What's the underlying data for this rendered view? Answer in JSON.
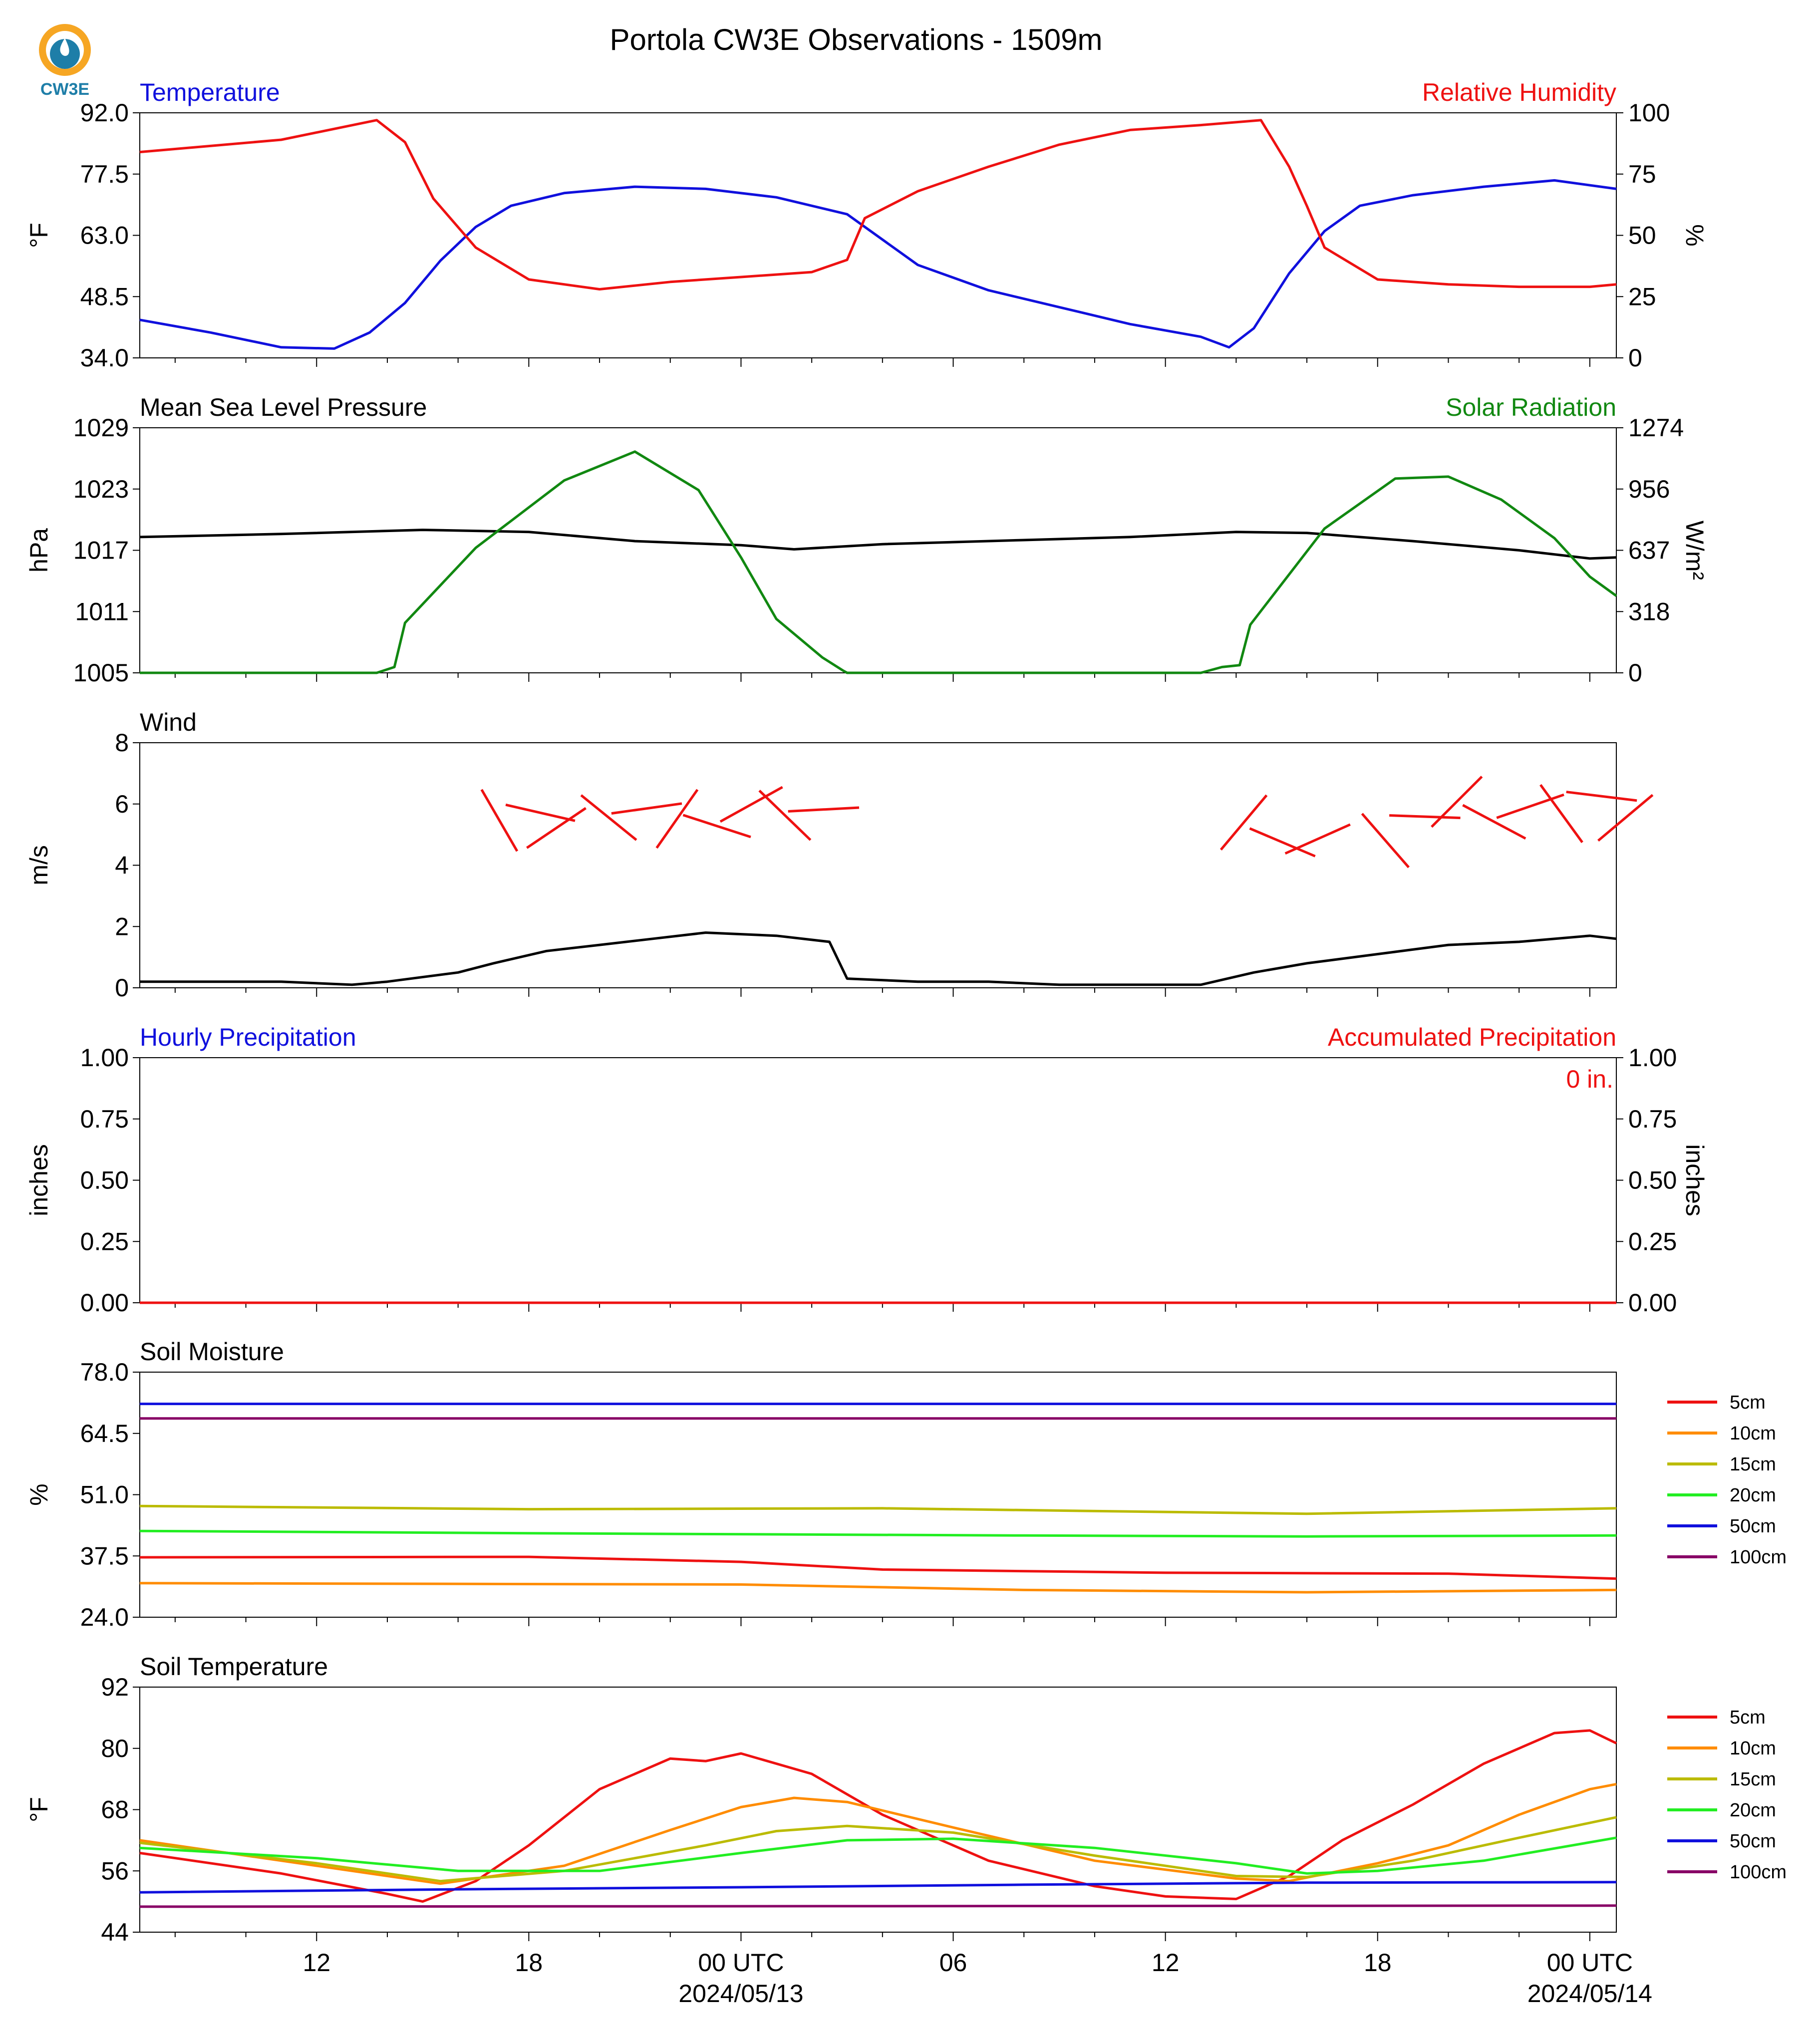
{
  "title": "Portola CW3E Observations - 1509m",
  "logo_text": "CW3E",
  "colors": {
    "blue": "#1010dd",
    "red": "#ee1111",
    "green": "#118811",
    "black": "#000000",
    "orange": "#ff8c00",
    "olive": "#bbbb00",
    "lime": "#22ee22",
    "purple": "#880066"
  },
  "x_axis": {
    "range_hours": [
      -17,
      24.75
    ],
    "tick_labels": [
      {
        "hour": -12,
        "label": "12"
      },
      {
        "hour": -6,
        "label": "18"
      },
      {
        "hour": 0,
        "label": "00 UTC",
        "date": "2024/05/13"
      },
      {
        "hour": 6,
        "label": "06"
      },
      {
        "hour": 12,
        "label": "12"
      },
      {
        "hour": 18,
        "label": "18"
      },
      {
        "hour": 24,
        "label": "00 UTC",
        "date": "2024/05/14"
      }
    ]
  },
  "panels": {
    "temp_rh": {
      "left_title": "Temperature",
      "right_title": "Relative Humidity",
      "left_ylabel": "°F",
      "right_ylabel": "%",
      "left_ticks": [
        "92.0",
        "77.5",
        "63.0",
        "48.5",
        "34.0"
      ],
      "right_ticks": [
        "100",
        "75",
        "50",
        "25",
        "0"
      ]
    },
    "pressure_solar": {
      "left_title": "Mean Sea Level Pressure",
      "right_title": "Solar Radiation",
      "left_ylabel": "hPa",
      "right_ylabel": "W/m²",
      "left_ticks": [
        "1029",
        "1023",
        "1017",
        "1011",
        "1005"
      ],
      "right_ticks": [
        "1274",
        "956",
        "637",
        "318",
        "0"
      ]
    },
    "wind": {
      "left_title": "Wind",
      "left_ylabel": "m/s",
      "left_ticks": [
        "8",
        "6",
        "4",
        "2",
        "0"
      ]
    },
    "precip": {
      "left_title": "Hourly Precipitation",
      "right_title": "Accumulated Precipitation",
      "left_ylabel": "inches",
      "right_ylabel": "inches",
      "left_ticks": [
        "1.00",
        "0.75",
        "0.50",
        "0.25",
        "0.00"
      ],
      "right_ticks": [
        "1.00",
        "0.75",
        "0.50",
        "0.25",
        "0.00"
      ],
      "annotation": "0 in."
    },
    "soil_moisture": {
      "left_title": "Soil Moisture",
      "left_ylabel": "%",
      "left_ticks": [
        "78.0",
        "64.5",
        "51.0",
        "37.5",
        "24.0"
      ],
      "legend": [
        "5cm",
        "10cm",
        "15cm",
        "20cm",
        "50cm",
        "100cm"
      ]
    },
    "soil_temp": {
      "left_title": "Soil Temperature",
      "left_ylabel": "°F",
      "left_ticks": [
        "92",
        "80",
        "68",
        "56",
        "44"
      ],
      "legend": [
        "5cm",
        "10cm",
        "15cm",
        "20cm",
        "50cm",
        "100cm"
      ]
    }
  },
  "chart_data": [
    {
      "type": "line",
      "title": "Temperature / Relative Humidity",
      "ylim": [
        34,
        92
      ],
      "y2lim": [
        0,
        100
      ],
      "series": [
        {
          "name": "Temperature",
          "axis": "left",
          "x": [
            -17,
            -15,
            -13,
            -11.5,
            -10.5,
            -9.5,
            -8.5,
            -7.5,
            -6.5,
            -5,
            -3,
            -1,
            1,
            3,
            5,
            7,
            9,
            11,
            13,
            13.8,
            14.5,
            15.5,
            16.5,
            17.5,
            19,
            21,
            23,
            24.75
          ],
          "y": [
            43,
            40,
            36.5,
            36.2,
            40,
            47,
            57,
            65,
            70,
            73,
            74.5,
            74,
            72,
            68,
            56,
            50,
            46,
            42,
            39,
            36.5,
            41,
            54,
            64,
            70,
            72.5,
            74.5,
            76,
            74
          ]
        },
        {
          "name": "Relative Humidity",
          "axis": "right",
          "x": [
            -17,
            -13,
            -10.3,
            -9.5,
            -8.7,
            -7.5,
            -6,
            -4,
            -2,
            0,
            2,
            3,
            3.5,
            5,
            7,
            9,
            11,
            13,
            14.7,
            15.5,
            16,
            16.5,
            18,
            20,
            22,
            24,
            24.75
          ],
          "y": [
            84,
            89,
            97,
            88,
            65,
            45,
            32,
            28,
            31,
            33,
            35,
            40,
            57,
            68,
            78,
            87,
            93,
            95,
            97,
            78,
            62,
            45,
            32,
            30,
            29,
            29,
            30
          ]
        }
      ]
    },
    {
      "type": "line",
      "title": "Mean Sea Level Pressure / Solar Radiation",
      "ylim": [
        1005,
        1029
      ],
      "y2lim": [
        0,
        1274
      ],
      "series": [
        {
          "name": "Mean Sea Level Pressure",
          "axis": "left",
          "x": [
            -17,
            -13,
            -9,
            -6,
            -3,
            0,
            1.5,
            4,
            8,
            11,
            14,
            16,
            19,
            22,
            24,
            24.75
          ],
          "y": [
            1018.3,
            1018.6,
            1019.0,
            1018.8,
            1017.9,
            1017.5,
            1017.1,
            1017.6,
            1018.0,
            1018.3,
            1018.8,
            1018.7,
            1017.9,
            1017.0,
            1016.2,
            1016.3
          ]
        },
        {
          "name": "Solar Radiation",
          "axis": "right",
          "x": [
            -17,
            -11,
            -10.3,
            -9.8,
            -9.5,
            -7.5,
            -5,
            -3,
            -1.2,
            0,
            1,
            2.3,
            2.9,
            3,
            13,
            13.6,
            14.1,
            14.4,
            16.5,
            18.5,
            20,
            21.5,
            23,
            24,
            24.75
          ],
          "y": [
            0,
            0,
            0,
            30,
            260,
            650,
            1000,
            1150,
            950,
            600,
            280,
            80,
            10,
            0,
            0,
            30,
            40,
            250,
            750,
            1010,
            1020,
            900,
            700,
            500,
            400
          ]
        }
      ]
    },
    {
      "type": "line",
      "title": "Wind",
      "ylim": [
        0,
        8
      ],
      "series": [
        {
          "name": "Wind",
          "x": [
            -17,
            -13,
            -11,
            -10,
            -8,
            -7,
            -5.5,
            -4,
            -2.5,
            -1,
            1,
            2.5,
            3,
            5,
            7,
            9,
            11,
            13,
            14.5,
            16,
            18,
            20,
            22,
            24,
            24.75
          ],
          "y": [
            0.2,
            0.2,
            0.1,
            0.2,
            0.5,
            0.8,
            1.2,
            1.4,
            1.6,
            1.8,
            1.7,
            1.5,
            0.3,
            0.2,
            0.2,
            0.1,
            0.1,
            0.1,
            0.5,
            0.8,
            1.1,
            1.4,
            1.5,
            1.7,
            1.6
          ]
        }
      ],
      "barbs_m_s": [
        {
          "x": -7.0,
          "y": 5.8
        },
        {
          "x": -6.0,
          "y": 5.8
        },
        {
          "x": -5.5,
          "y": 5.0
        },
        {
          "x": -4.0,
          "y": 5.8
        },
        {
          "x": -3.0,
          "y": 5.8
        },
        {
          "x": -2.0,
          "y": 5.2
        },
        {
          "x": -1.0,
          "y": 5.4
        },
        {
          "x": 0.0,
          "y": 5.8
        },
        {
          "x": 1.0,
          "y": 5.9
        },
        {
          "x": 2.0,
          "y": 5.8
        },
        {
          "x": 14.0,
          "y": 5.1
        },
        {
          "x": 15.0,
          "y": 4.9
        },
        {
          "x": 16.0,
          "y": 4.7
        },
        {
          "x": 18.0,
          "y": 5.1
        },
        {
          "x": 19.0,
          "y": 5.6
        },
        {
          "x": 20.0,
          "y": 5.8
        },
        {
          "x": 21.0,
          "y": 5.6
        },
        {
          "x": 22.0,
          "y": 5.8
        },
        {
          "x": 23.0,
          "y": 6.0
        },
        {
          "x": 24.0,
          "y": 6.3
        },
        {
          "x": 24.75,
          "y": 5.3
        }
      ]
    },
    {
      "type": "line",
      "title": "Hourly Precipitation / Accumulated Precipitation",
      "ylim": [
        0,
        1
      ],
      "y2lim": [
        0,
        1
      ],
      "series": [
        {
          "name": "Hourly Precipitation",
          "x": [
            -17,
            24.75
          ],
          "y": [
            0,
            0
          ]
        },
        {
          "name": "Accumulated Precipitation",
          "x": [
            -17,
            24.75
          ],
          "y": [
            0,
            0
          ]
        }
      ]
    },
    {
      "type": "line",
      "title": "Soil Moisture",
      "ylim": [
        24,
        78
      ],
      "series": [
        {
          "name": "5cm",
          "x": [
            -17,
            -6,
            0,
            4,
            12,
            20,
            24.75
          ],
          "y": [
            37.2,
            37.3,
            36.2,
            34.5,
            33.8,
            33.6,
            32.5
          ]
        },
        {
          "name": "10cm",
          "x": [
            -17,
            0,
            8,
            16,
            24.75
          ],
          "y": [
            31.5,
            31.2,
            30.0,
            29.5,
            30.0
          ]
        },
        {
          "name": "15cm",
          "x": [
            -17,
            -6,
            4,
            16,
            24.75
          ],
          "y": [
            48.5,
            47.8,
            48.0,
            46.8,
            48.0
          ]
        },
        {
          "name": "20cm",
          "x": [
            -17,
            -6,
            8,
            16,
            24.75
          ],
          "y": [
            43.0,
            42.5,
            42.0,
            41.8,
            42.0
          ]
        },
        {
          "name": "50cm",
          "x": [
            -17,
            24.75
          ],
          "y": [
            71.0,
            71.0
          ]
        },
        {
          "name": "100cm",
          "x": [
            -17,
            24.75
          ],
          "y": [
            67.8,
            67.8
          ]
        }
      ]
    },
    {
      "type": "line",
      "title": "Soil Temperature",
      "ylim": [
        44,
        92
      ],
      "series": [
        {
          "name": "5cm",
          "x": [
            -17,
            -13,
            -10,
            -9,
            -7.5,
            -6,
            -4,
            -2,
            -1,
            0,
            2,
            4,
            7,
            10,
            12,
            14,
            15.5,
            17,
            19,
            21,
            23,
            24,
            24.75
          ],
          "y": [
            59.5,
            55.5,
            51.5,
            50,
            54,
            61,
            72,
            78,
            77.5,
            79,
            75,
            67,
            58,
            53,
            51,
            50.5,
            55,
            62,
            69,
            77,
            83,
            83.5,
            81
          ]
        },
        {
          "name": "10cm",
          "x": [
            -17,
            -12,
            -8.5,
            -5,
            -2,
            0,
            1.5,
            3,
            6,
            10,
            14,
            15.5,
            18,
            20,
            22,
            24,
            24.75
          ],
          "y": [
            62,
            57,
            53.5,
            57,
            64,
            68.5,
            70.3,
            69.5,
            64.5,
            58,
            54.5,
            54,
            57.5,
            61,
            67,
            72,
            73
          ]
        },
        {
          "name": "15cm",
          "x": [
            -17,
            -12,
            -8.5,
            -5,
            -1,
            1,
            3,
            6,
            10,
            14,
            16,
            19,
            22,
            24.75
          ],
          "y": [
            61.5,
            57.5,
            54,
            56,
            61,
            63.8,
            64.8,
            63.5,
            59,
            55,
            54.8,
            58,
            62.5,
            66.5
          ]
        },
        {
          "name": "20cm",
          "x": [
            -17,
            -12,
            -8,
            -4,
            0,
            3,
            6,
            10,
            14,
            16,
            18,
            21,
            24.75
          ],
          "y": [
            60.5,
            58.5,
            56,
            56,
            59.5,
            62,
            62.3,
            60.5,
            57.5,
            55.5,
            56,
            58,
            62.5
          ]
        },
        {
          "name": "50cm",
          "x": [
            -17,
            -8,
            0,
            8,
            16,
            24.75
          ],
          "y": [
            51.8,
            52.4,
            52.8,
            53.3,
            53.7,
            53.8
          ]
        },
        {
          "name": "100cm",
          "x": [
            -17,
            24.75
          ],
          "y": [
            49.0,
            49.2
          ]
        }
      ]
    }
  ]
}
